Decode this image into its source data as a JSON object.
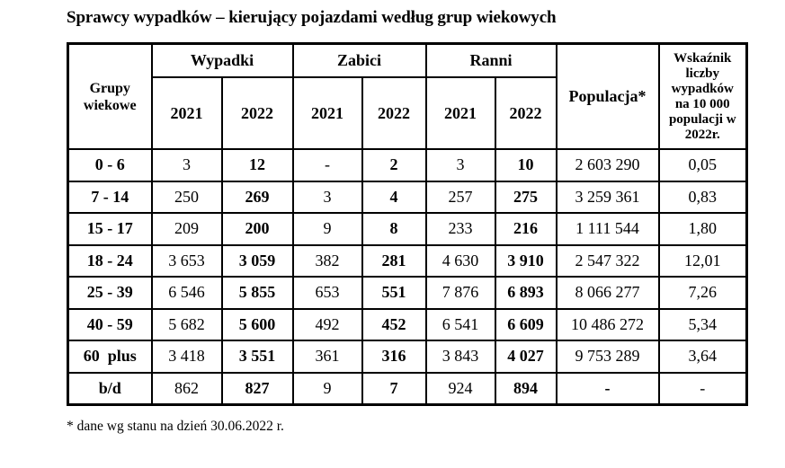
{
  "title": "Sprawcy wypadków – kierujący pojazdami według grup wiekowych",
  "table": {
    "header": {
      "group_col": "Grupy wiekowe",
      "wypadki": "Wypadki",
      "zabici": "Zabici",
      "ranni": "Ranni",
      "populacja": "Populacja*",
      "wskaznik": "Wskaźnik liczby wypadków na 10 000 populacji w 2022r.",
      "years": [
        "2021",
        "2022",
        "2021",
        "2022",
        "2021",
        "2022"
      ]
    },
    "rows": [
      {
        "group": "0 - 6",
        "wyp2021": "3",
        "wyp2022": "12",
        "zab2021": "-",
        "zab2022": "2",
        "ran2021": "3",
        "ran2022": "10",
        "populacja": "2 603 290",
        "wskaznik": "0,05"
      },
      {
        "group": "7 - 14",
        "wyp2021": "250",
        "wyp2022": "269",
        "zab2021": "3",
        "zab2022": "4",
        "ran2021": "257",
        "ran2022": "275",
        "populacja": "3 259 361",
        "wskaznik": "0,83"
      },
      {
        "group": "15 - 17",
        "wyp2021": "209",
        "wyp2022": "200",
        "zab2021": "9",
        "zab2022": "8",
        "ran2021": "233",
        "ran2022": "216",
        "populacja": "1 111 544",
        "wskaznik": "1,80"
      },
      {
        "group": "18 - 24",
        "wyp2021": "3 653",
        "wyp2022": "3 059",
        "zab2021": "382",
        "zab2022": "281",
        "ran2021": "4 630",
        "ran2022": "3 910",
        "populacja": "2 547 322",
        "wskaznik": "12,01"
      },
      {
        "group": "25 - 39",
        "wyp2021": "6 546",
        "wyp2022": "5 855",
        "zab2021": "653",
        "zab2022": "551",
        "ran2021": "7 876",
        "ran2022": "6 893",
        "populacja": "8 066 277",
        "wskaznik": "7,26"
      },
      {
        "group": "40 - 59",
        "wyp2021": "5 682",
        "wyp2022": "5 600",
        "zab2021": "492",
        "zab2022": "452",
        "ran2021": "6 541",
        "ran2022": "6 609",
        "populacja": "10 486 272",
        "wskaznik": "5,34"
      },
      {
        "group": "60  plus",
        "wyp2021": "3 418",
        "wyp2022": "3 551",
        "zab2021": "361",
        "zab2022": "316",
        "ran2021": "3 843",
        "ran2022": "4 027",
        "populacja": "9 753 289",
        "wskaznik": "3,64"
      },
      {
        "group": "b/d",
        "wyp2021": "862",
        "wyp2022": "827",
        "zab2021": "9",
        "zab2022": "7",
        "ran2021": "924",
        "ran2022": "894",
        "populacja": "-",
        "wskaznik": "-"
      }
    ]
  },
  "footnote": "* dane wg stanu na dzień 30.06.2022 r."
}
